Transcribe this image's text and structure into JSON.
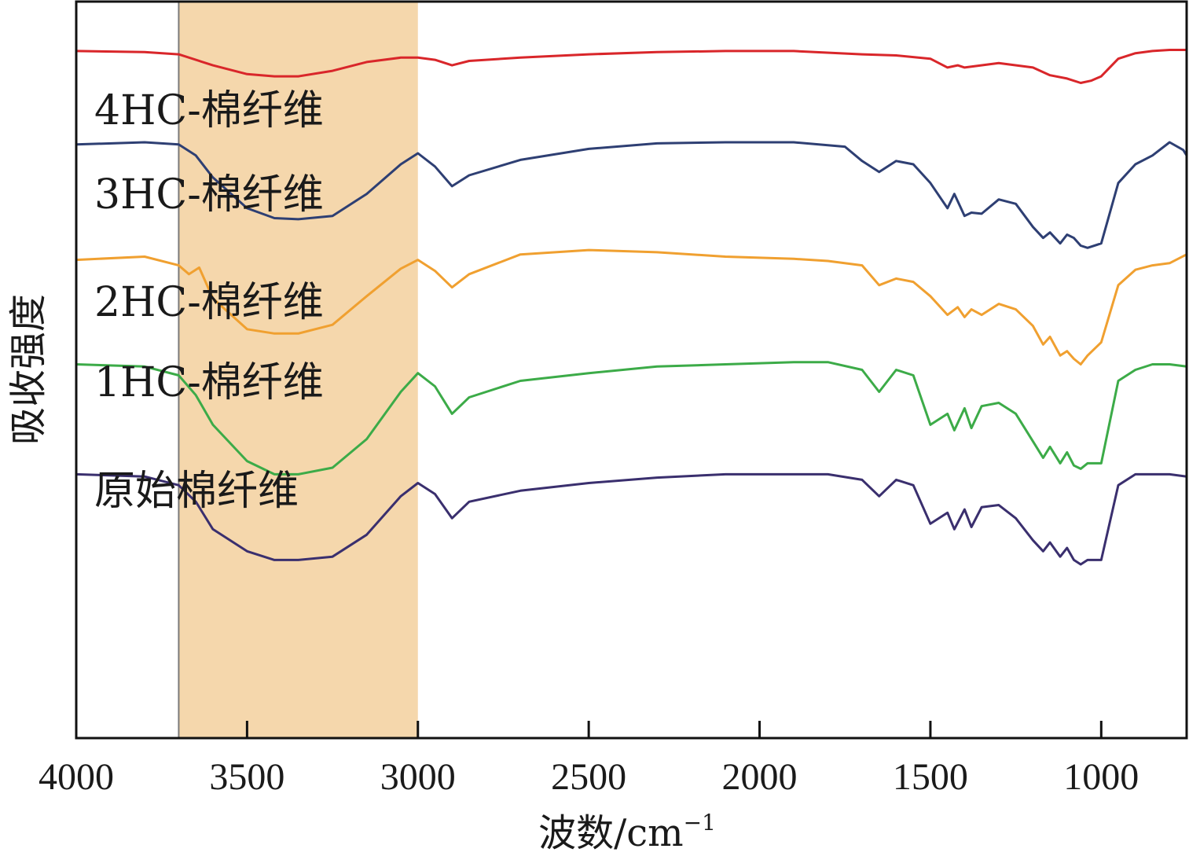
{
  "chart_data": {
    "type": "line",
    "title": "",
    "xlabel": "波数/cm",
    "xlabel_sup": "−1",
    "ylabel": "吸收强度",
    "xlim": [
      4000,
      750
    ],
    "x_reversed": true,
    "ylim": [
      -1.4,
      5.3
    ],
    "y_ticks_shown": false,
    "x_ticks": [
      4000,
      3500,
      3000,
      2500,
      2000,
      1500,
      1000
    ],
    "x_tick_labels": [
      "4000",
      "3500",
      "3000",
      "2500",
      "2000",
      "1500",
      "1000"
    ],
    "grid": false,
    "legend": "none",
    "highlight_band": {
      "from": 3700,
      "to": 3000,
      "color": "#f5d7ac"
    },
    "reference_line": {
      "x": 3700,
      "color": "#7a7a7a"
    },
    "series": [
      {
        "name": "4HC-棉纤维",
        "color": "#d9262a",
        "x": [
          4000,
          3800,
          3700,
          3600,
          3500,
          3420,
          3350,
          3250,
          3150,
          3050,
          3000,
          2950,
          2900,
          2850,
          2700,
          2500,
          2300,
          2100,
          1900,
          1700,
          1600,
          1500,
          1450,
          1420,
          1400,
          1300,
          1200,
          1150,
          1100,
          1060,
          1030,
          1000,
          950,
          900,
          850,
          800,
          750
        ],
        "values": [
          4.85,
          4.84,
          4.82,
          4.72,
          4.64,
          4.62,
          4.62,
          4.67,
          4.75,
          4.79,
          4.79,
          4.77,
          4.72,
          4.76,
          4.79,
          4.82,
          4.84,
          4.85,
          4.85,
          4.82,
          4.81,
          4.78,
          4.7,
          4.72,
          4.7,
          4.74,
          4.7,
          4.63,
          4.6,
          4.56,
          4.58,
          4.62,
          4.78,
          4.83,
          4.85,
          4.86,
          4.86
        ]
      },
      {
        "name": "3HC-棉纤维",
        "color": "#2e3f73",
        "x": [
          4000,
          3800,
          3700,
          3650,
          3600,
          3500,
          3420,
          3350,
          3250,
          3150,
          3050,
          3000,
          2950,
          2900,
          2850,
          2700,
          2500,
          2300,
          2100,
          1900,
          1750,
          1700,
          1650,
          1600,
          1550,
          1500,
          1450,
          1430,
          1400,
          1380,
          1350,
          1300,
          1250,
          1200,
          1170,
          1150,
          1120,
          1100,
          1080,
          1060,
          1040,
          1000,
          950,
          900,
          850,
          800,
          760,
          750
        ],
        "values": [
          4.0,
          4.02,
          4.0,
          3.9,
          3.7,
          3.42,
          3.33,
          3.32,
          3.35,
          3.55,
          3.82,
          3.92,
          3.8,
          3.62,
          3.72,
          3.86,
          3.96,
          4.01,
          4.02,
          4.02,
          3.98,
          3.85,
          3.75,
          3.85,
          3.82,
          3.65,
          3.42,
          3.55,
          3.35,
          3.38,
          3.37,
          3.5,
          3.46,
          3.25,
          3.15,
          3.2,
          3.1,
          3.18,
          3.15,
          3.08,
          3.06,
          3.1,
          3.65,
          3.82,
          3.9,
          4.02,
          3.95,
          3.9
        ]
      },
      {
        "name": "2HC-棉纤维",
        "color": "#f0a030",
        "x": [
          4000,
          3800,
          3700,
          3670,
          3640,
          3600,
          3500,
          3420,
          3350,
          3250,
          3150,
          3050,
          3000,
          2950,
          2900,
          2850,
          2700,
          2500,
          2300,
          2100,
          1900,
          1800,
          1700,
          1650,
          1600,
          1550,
          1500,
          1450,
          1420,
          1400,
          1380,
          1350,
          1300,
          1250,
          1200,
          1170,
          1150,
          1120,
          1100,
          1080,
          1060,
          1040,
          1000,
          950,
          900,
          850,
          800,
          750
        ],
        "values": [
          2.95,
          2.98,
          2.9,
          2.82,
          2.88,
          2.6,
          2.32,
          2.28,
          2.28,
          2.36,
          2.62,
          2.87,
          2.95,
          2.85,
          2.7,
          2.82,
          3.0,
          3.04,
          3.02,
          2.98,
          2.96,
          2.94,
          2.9,
          2.72,
          2.78,
          2.75,
          2.62,
          2.45,
          2.52,
          2.43,
          2.5,
          2.45,
          2.55,
          2.5,
          2.35,
          2.18,
          2.25,
          2.08,
          2.12,
          2.05,
          2.0,
          2.08,
          2.2,
          2.72,
          2.86,
          2.9,
          2.92,
          3.0
        ]
      },
      {
        "name": "1HC-棉纤维",
        "color": "#3cab48",
        "x": [
          4000,
          3800,
          3700,
          3650,
          3600,
          3500,
          3420,
          3350,
          3250,
          3150,
          3050,
          3000,
          2950,
          2900,
          2850,
          2700,
          2500,
          2300,
          2100,
          1900,
          1800,
          1700,
          1650,
          1600,
          1550,
          1500,
          1450,
          1430,
          1400,
          1380,
          1350,
          1300,
          1250,
          1200,
          1170,
          1150,
          1120,
          1100,
          1080,
          1060,
          1040,
          1000,
          950,
          900,
          850,
          800,
          750
        ],
        "values": [
          2.0,
          1.98,
          1.9,
          1.72,
          1.45,
          1.12,
          1.0,
          1.0,
          1.06,
          1.32,
          1.75,
          1.92,
          1.8,
          1.55,
          1.7,
          1.85,
          1.92,
          1.98,
          2.0,
          2.02,
          2.02,
          1.95,
          1.75,
          1.95,
          1.9,
          1.45,
          1.55,
          1.4,
          1.6,
          1.42,
          1.62,
          1.65,
          1.55,
          1.3,
          1.15,
          1.25,
          1.1,
          1.2,
          1.08,
          1.05,
          1.1,
          1.1,
          1.85,
          1.95,
          2.0,
          2.0,
          1.98
        ]
      },
      {
        "name": "原始棉纤维",
        "color": "#3a2f6e",
        "x": [
          4000,
          3800,
          3700,
          3650,
          3600,
          3500,
          3420,
          3350,
          3250,
          3150,
          3050,
          3000,
          2950,
          2900,
          2850,
          2700,
          2500,
          2300,
          2100,
          1900,
          1800,
          1700,
          1650,
          1600,
          1550,
          1500,
          1450,
          1430,
          1400,
          1380,
          1350,
          1300,
          1250,
          1200,
          1170,
          1150,
          1120,
          1100,
          1080,
          1060,
          1040,
          1000,
          950,
          900,
          850,
          800,
          750
        ],
        "values": [
          1.0,
          0.98,
          0.9,
          0.75,
          0.5,
          0.3,
          0.22,
          0.22,
          0.25,
          0.45,
          0.8,
          0.92,
          0.82,
          0.6,
          0.75,
          0.85,
          0.92,
          0.97,
          1.0,
          1.0,
          1.0,
          0.95,
          0.8,
          0.95,
          0.9,
          0.55,
          0.65,
          0.5,
          0.68,
          0.52,
          0.7,
          0.72,
          0.6,
          0.4,
          0.3,
          0.38,
          0.25,
          0.33,
          0.22,
          0.18,
          0.22,
          0.22,
          0.9,
          1.0,
          1.0,
          1.0,
          0.98
        ]
      }
    ]
  }
}
